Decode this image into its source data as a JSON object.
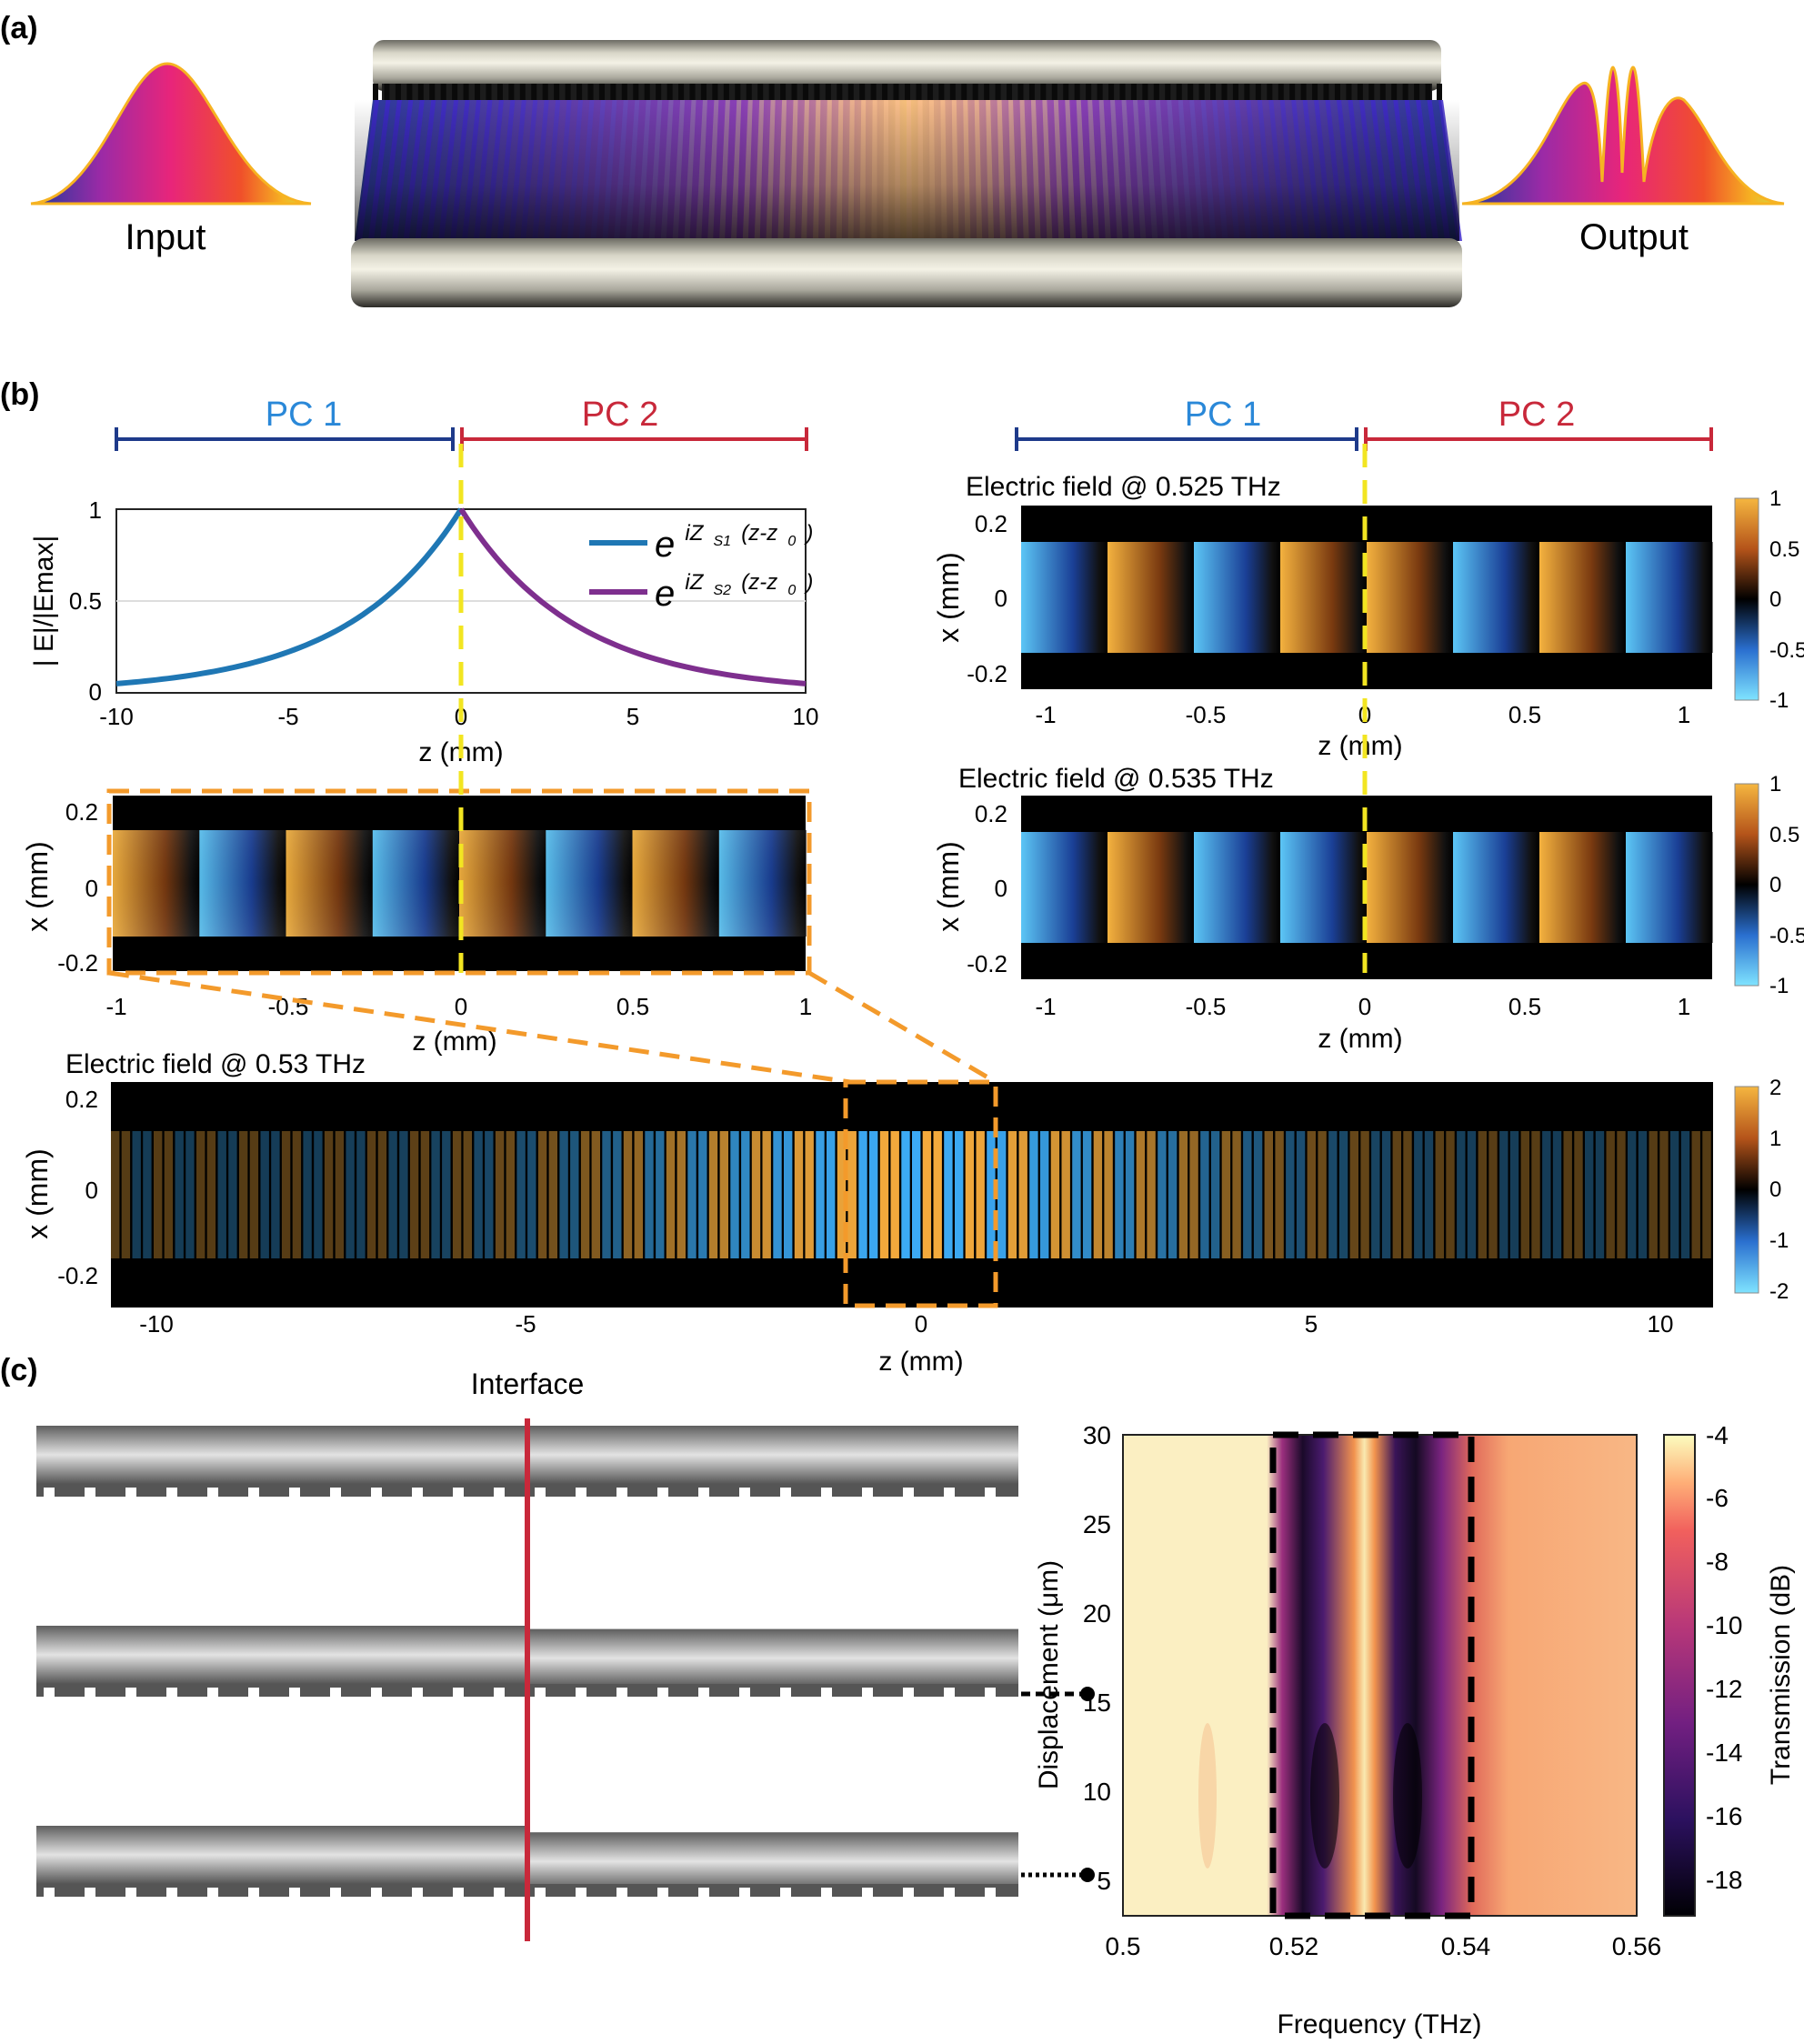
{
  "panel_labels": {
    "a": "(a)",
    "b": "(b)",
    "c": "(c)"
  },
  "panel_a": {
    "input_label": "Input",
    "output_label": "Output"
  },
  "panel_b": {
    "pc1_label": "PC 1",
    "pc2_label": "PC 2",
    "decay_plot": {
      "ylabel": "| E|/|Emax|",
      "xlabel": "z (mm)",
      "xticks": [
        "-10",
        "-5",
        "0",
        "5",
        "10"
      ],
      "yticks": [
        "0",
        "0.5",
        "1"
      ],
      "legend": [
        {
          "base": "e",
          "sup": "iZ",
          "sub": "S1",
          "tail": "(z-z",
          "tail_sub": "0",
          "end": ")",
          "color": "#1f77b4"
        },
        {
          "base": "e",
          "sup": "iZ",
          "sub": "S2",
          "tail": "(z-z",
          "tail_sub": "0",
          "end": ")",
          "color": "#7e2f8e"
        }
      ]
    },
    "zoom_map": {
      "ylabel": "x (mm)",
      "xlabel": "z (mm)",
      "xticks": [
        "-1",
        "-0.5",
        "0",
        "0.5",
        "1"
      ],
      "yticks": [
        "0.2",
        "0",
        "-0.2"
      ]
    },
    "field_525": {
      "title": "Electric field @ 0.525 THz",
      "ylabel": "x (mm)",
      "xlabel": "z (mm)",
      "xticks": [
        "-1",
        "-0.5",
        "0",
        "0.5",
        "1"
      ],
      "yticks": [
        "0.2",
        "0",
        "-0.2"
      ],
      "cbar_ticks": [
        "1",
        "0.5",
        "0",
        "-0.5",
        "-1"
      ]
    },
    "field_535": {
      "title": "Electric field  @ 0.535 THz",
      "ylabel": "x (mm)",
      "xlabel": "z (mm)",
      "xticks": [
        "-1",
        "-0.5",
        "0",
        "0.5",
        "1"
      ],
      "yticks": [
        "0.2",
        "0",
        "-0.2"
      ],
      "cbar_ticks": [
        "1",
        "0.5",
        "0",
        "-0.5",
        "-1"
      ]
    },
    "field_53": {
      "title": "Electric field  @ 0.53 THz",
      "ylabel": "x (mm)",
      "xlabel": "z (mm)",
      "xticks": [
        "-10",
        "-5",
        "0",
        "5",
        "10"
      ],
      "yticks": [
        "0.2",
        "0",
        "-0.2"
      ],
      "cbar_ticks": [
        "2",
        "1",
        "0",
        "-1",
        "-2"
      ]
    }
  },
  "panel_c": {
    "interface_label": "Interface",
    "heatmap": {
      "xlabel": "Frequency (THz)",
      "ylabel": "Displacement (μm)",
      "xticks": [
        "0.5",
        "0.52",
        "0.54",
        "0.56"
      ],
      "yticks": [
        "30",
        "25",
        "20",
        "15",
        "10",
        "5"
      ],
      "cbar_label": "Transmission (dB)",
      "cbar_ticks": [
        "-4",
        "-6",
        "-8",
        "-10",
        "-12",
        "-14",
        "-16",
        "-18"
      ]
    }
  },
  "chart_data": [
    {
      "type": "line",
      "xlabel": "z (mm)",
      "ylabel": "| E|/|Emax|",
      "xlim": [
        -10,
        10
      ],
      "ylim": [
        0,
        1
      ],
      "grid": true,
      "legend_position": "top-right",
      "series": [
        {
          "name": "e^{iZ_S1(z-z_0)}",
          "color": "#1f77b4",
          "x": [
            -10,
            -8,
            -6,
            -4,
            -2,
            0
          ],
          "y": [
            0.05,
            0.09,
            0.17,
            0.3,
            0.55,
            1.0
          ]
        },
        {
          "name": "e^{iZ_S2(z-z_0)}",
          "color": "#7e2f8e",
          "x": [
            0,
            2,
            4,
            6,
            8,
            10
          ],
          "y": [
            1.0,
            0.55,
            0.3,
            0.17,
            0.09,
            0.05
          ]
        }
      ]
    },
    {
      "type": "heatmap",
      "xlabel": "Frequency (THz)",
      "ylabel": "Displacement (μm)",
      "xlim": [
        0.5,
        0.56
      ],
      "ylim": [
        3,
        30
      ],
      "colorbar_label": "Transmission (dB)",
      "colorbar_range": [
        -19,
        -4
      ],
      "dip_frequencies_thz": [
        0.525,
        0.535
      ],
      "peak_frequency_thz": 0.53
    }
  ]
}
